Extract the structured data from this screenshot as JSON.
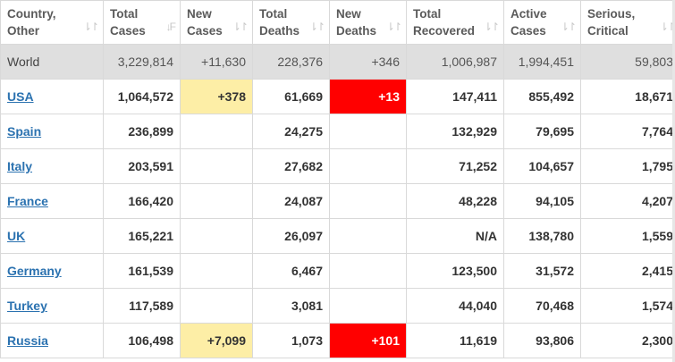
{
  "columns": [
    {
      "line1": "Country,",
      "line2": "Other"
    },
    {
      "line1": "Total",
      "line2": "Cases",
      "sort_icon": "sort-desc-icon"
    },
    {
      "line1": "New",
      "line2": "Cases",
      "sort_icon": "sort-icon"
    },
    {
      "line1": "Total",
      "line2": "Deaths",
      "sort_icon": "sort-icon"
    },
    {
      "line1": "New",
      "line2": "Deaths",
      "sort_icon": "sort-icon"
    },
    {
      "line1": "Total",
      "line2": "Recovered",
      "sort_icon": "sort-icon"
    },
    {
      "line1": "Active",
      "line2": "Cases",
      "sort_icon": "sort-icon"
    },
    {
      "line1": "Serious,",
      "line2": "Critical",
      "sort_icon": "sort-icon"
    }
  ],
  "sort_glyph": "⇂↾",
  "sort_desc_glyph": "↓F",
  "world": {
    "country": "World",
    "total_cases": "3,229,814",
    "new_cases": "+11,630",
    "total_deaths": "228,376",
    "new_deaths": "+346",
    "total_recovered": "1,006,987",
    "active_cases": "1,994,451",
    "serious_critical": "59,803"
  },
  "rows": [
    {
      "country": "USA",
      "total_cases": "1,064,572",
      "new_cases": "+378",
      "total_deaths": "61,669",
      "new_deaths": "+13",
      "total_recovered": "147,411",
      "active_cases": "855,492",
      "serious_critical": "18,671"
    },
    {
      "country": "Spain",
      "total_cases": "236,899",
      "new_cases": "",
      "total_deaths": "24,275",
      "new_deaths": "",
      "total_recovered": "132,929",
      "active_cases": "79,695",
      "serious_critical": "7,764"
    },
    {
      "country": "Italy",
      "total_cases": "203,591",
      "new_cases": "",
      "total_deaths": "27,682",
      "new_deaths": "",
      "total_recovered": "71,252",
      "active_cases": "104,657",
      "serious_critical": "1,795"
    },
    {
      "country": "France",
      "total_cases": "166,420",
      "new_cases": "",
      "total_deaths": "24,087",
      "new_deaths": "",
      "total_recovered": "48,228",
      "active_cases": "94,105",
      "serious_critical": "4,207"
    },
    {
      "country": "UK",
      "total_cases": "165,221",
      "new_cases": "",
      "total_deaths": "26,097",
      "new_deaths": "",
      "total_recovered": "N/A",
      "active_cases": "138,780",
      "serious_critical": "1,559"
    },
    {
      "country": "Germany",
      "total_cases": "161,539",
      "new_cases": "",
      "total_deaths": "6,467",
      "new_deaths": "",
      "total_recovered": "123,500",
      "active_cases": "31,572",
      "serious_critical": "2,415"
    },
    {
      "country": "Turkey",
      "total_cases": "117,589",
      "new_cases": "",
      "total_deaths": "3,081",
      "new_deaths": "",
      "total_recovered": "44,040",
      "active_cases": "70,468",
      "serious_critical": "1,574"
    },
    {
      "country": "Russia",
      "total_cases": "106,498",
      "new_cases": "+7,099",
      "total_deaths": "1,073",
      "new_deaths": "+101",
      "total_recovered": "11,619",
      "active_cases": "93,806",
      "serious_critical": "2,300"
    }
  ],
  "colors": {
    "new_cases_highlight": "#fdeea6",
    "new_deaths_highlight": "#ff0000",
    "link": "#2b72b0",
    "world_row_bg": "#dfdfdf"
  }
}
